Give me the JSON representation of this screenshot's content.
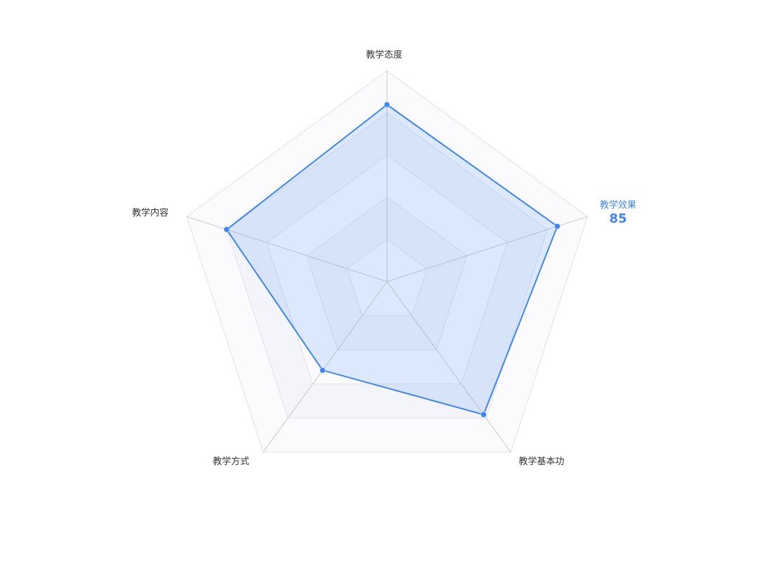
{
  "chart_data": {
    "type": "radar",
    "max": 100,
    "levels": 5,
    "indicators": [
      "教学态度",
      "教学效果",
      "教学基本功",
      "教学方式",
      "教学内容"
    ],
    "series": [
      {
        "values": [
          84,
          85,
          78,
          52,
          80
        ]
      }
    ],
    "highlight": {
      "index": 1,
      "label": "教学效果",
      "value": "85"
    },
    "colors": {
      "line": "#3f86f1",
      "area": "rgba(63,134,241,0.16)",
      "split_area_a": "#fbfbfd",
      "split_area_b": "#f3f5fb",
      "split_line": "#e2e2e6",
      "axis_line": "#c9c9cf"
    }
  }
}
